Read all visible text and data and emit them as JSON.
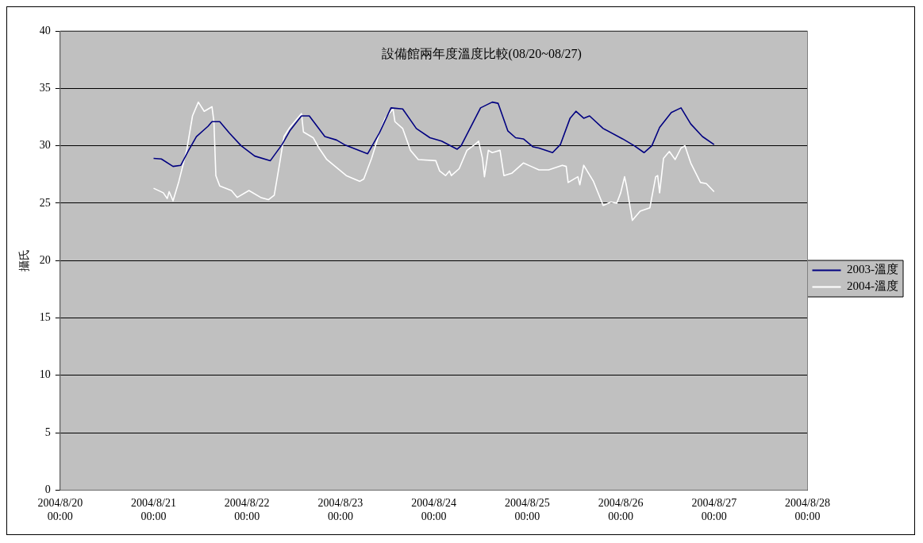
{
  "chart_data": {
    "type": "line",
    "title": "設備館兩年度溫度比較(08/20~08/27)",
    "ylabel": "攝氏",
    "xlim": [
      "2004-08-20T00:00",
      "2004-08-28T00:00"
    ],
    "xticks": [
      {
        "value": "2004-08-20T00:00",
        "label": "2004/8/20 00:00"
      },
      {
        "value": "2004-08-21T00:00",
        "label": "2004/8/21 00:00"
      },
      {
        "value": "2004-08-22T00:00",
        "label": "2004/8/22 00:00"
      },
      {
        "value": "2004-08-23T00:00",
        "label": "2004/8/23 00:00"
      },
      {
        "value": "2004-08-24T00:00",
        "label": "2004/8/24 00:00"
      },
      {
        "value": "2004-08-25T00:00",
        "label": "2004/8/25 00:00"
      },
      {
        "value": "2004-08-26T00:00",
        "label": "2004/8/26 00:00"
      },
      {
        "value": "2004-08-27T00:00",
        "label": "2004/8/27 00:00"
      },
      {
        "value": "2004-08-28T00:00",
        "label": "2004/8/28 00:00"
      }
    ],
    "ylim": [
      0,
      40
    ],
    "yticks": [
      0,
      5,
      10,
      15,
      20,
      25,
      30,
      35,
      40
    ],
    "grid": "y",
    "legend": "right",
    "marker": "none",
    "line_style": "solid",
    "series": [
      {
        "name": "2003-溫度",
        "color": "#000080",
        "x": [
          "2004-08-21T00:00",
          "2004-08-21T02:00",
          "2004-08-21T05:00",
          "2004-08-21T07:00",
          "2004-08-21T09:00",
          "2004-08-21T11:00",
          "2004-08-21T14:00",
          "2004-08-21T15:00",
          "2004-08-21T17:00",
          "2004-08-21T19:30",
          "2004-08-21T22:30",
          "2004-08-22T02:00",
          "2004-08-22T06:00",
          "2004-08-22T09:00",
          "2004-08-22T11:00",
          "2004-08-22T13:30",
          "2004-08-22T14:00",
          "2004-08-22T16:00",
          "2004-08-22T20:00",
          "2004-08-22T23:00",
          "2004-08-23T01:00",
          "2004-08-23T07:00",
          "2004-08-23T10:00",
          "2004-08-23T13:00",
          "2004-08-23T16:00",
          "2004-08-23T19:30",
          "2004-08-23T23:00",
          "2004-08-24T02:00",
          "2004-08-24T06:00",
          "2004-08-24T07:00",
          "2004-08-24T12:00",
          "2004-08-24T15:00",
          "2004-08-24T16:30",
          "2004-08-24T19:00",
          "2004-08-24T21:00",
          "2004-08-24T23:00",
          "2004-08-25T01:30",
          "2004-08-25T03:00",
          "2004-08-25T06:30",
          "2004-08-25T08:30",
          "2004-08-25T11:00",
          "2004-08-25T12:30",
          "2004-08-25T14:30",
          "2004-08-25T16:00",
          "2004-08-25T19:30",
          "2004-08-26T00:30",
          "2004-08-26T03:30",
          "2004-08-26T06:00",
          "2004-08-26T08:00",
          "2004-08-26T10:00",
          "2004-08-26T13:00",
          "2004-08-26T15:30",
          "2004-08-26T18:00",
          "2004-08-26T21:00",
          "2004-08-27T00:00"
        ],
        "values": [
          28.9,
          28.85,
          28.2,
          28.3,
          29.6,
          30.8,
          31.7,
          32.1,
          32.1,
          31.1,
          30.0,
          29.1,
          28.7,
          30.1,
          31.3,
          32.4,
          32.6,
          32.6,
          30.8,
          30.5,
          30.1,
          29.3,
          31.1,
          33.3,
          33.2,
          31.5,
          30.7,
          30.4,
          29.7,
          30.0,
          33.3,
          33.8,
          33.7,
          31.3,
          30.7,
          30.6,
          29.9,
          29.8,
          29.4,
          30.1,
          32.4,
          33.0,
          32.4,
          32.6,
          31.5,
          30.6,
          30.0,
          29.4,
          30.0,
          31.6,
          32.9,
          33.3,
          31.9,
          30.8,
          30.1
        ]
      },
      {
        "name": "2004-溫度",
        "color": "#ffffff",
        "x": [
          "2004-08-21T00:00",
          "2004-08-21T02:30",
          "2004-08-21T03:30",
          "2004-08-21T04:00",
          "2004-08-21T05:00",
          "2004-08-21T06:30",
          "2004-08-21T08:30",
          "2004-08-21T10:00",
          "2004-08-21T11:30",
          "2004-08-21T13:00",
          "2004-08-21T15:00",
          "2004-08-21T15:30",
          "2004-08-21T16:00",
          "2004-08-21T17:00",
          "2004-08-21T20:00",
          "2004-08-21T21:30",
          "2004-08-22T00:30",
          "2004-08-22T03:30",
          "2004-08-22T05:30",
          "2004-08-22T07:00",
          "2004-08-22T08:30",
          "2004-08-22T09:30",
          "2004-08-22T11:00",
          "2004-08-22T12:30",
          "2004-08-22T14:00",
          "2004-08-22T14:30",
          "2004-08-22T17:00",
          "2004-08-22T18:30",
          "2004-08-22T20:30",
          "2004-08-23T01:30",
          "2004-08-23T05:00",
          "2004-08-23T06:00",
          "2004-08-23T08:00",
          "2004-08-23T10:00",
          "2004-08-23T11:30",
          "2004-08-23T13:30",
          "2004-08-23T14:00",
          "2004-08-23T16:00",
          "2004-08-23T18:00",
          "2004-08-23T20:00",
          "2004-08-24T00:30",
          "2004-08-24T01:30",
          "2004-08-24T03:00",
          "2004-08-24T04:00",
          "2004-08-24T04:30",
          "2004-08-24T06:30",
          "2004-08-24T08:30",
          "2004-08-24T10:30",
          "2004-08-24T11:30",
          "2004-08-24T12:30",
          "2004-08-24T13:00",
          "2004-08-24T14:00",
          "2004-08-24T15:00",
          "2004-08-24T17:00",
          "2004-08-24T18:00",
          "2004-08-24T20:00",
          "2004-08-24T23:00",
          "2004-08-25T01:00",
          "2004-08-25T03:00",
          "2004-08-25T05:30",
          "2004-08-25T09:00",
          "2004-08-25T10:00",
          "2004-08-25T10:30",
          "2004-08-25T13:00",
          "2004-08-25T13:30",
          "2004-08-25T14:30",
          "2004-08-25T17:00",
          "2004-08-25T19:30",
          "2004-08-25T21:30",
          "2004-08-25T23:00",
          "2004-08-26T00:00",
          "2004-08-26T01:00",
          "2004-08-26T01:30",
          "2004-08-26T03:00",
          "2004-08-26T05:00",
          "2004-08-26T07:30",
          "2004-08-26T09:00",
          "2004-08-26T09:30",
          "2004-08-26T10:00",
          "2004-08-26T11:00",
          "2004-08-26T12:30",
          "2004-08-26T14:00",
          "2004-08-26T15:30",
          "2004-08-26T16:30",
          "2004-08-26T18:00",
          "2004-08-26T20:30",
          "2004-08-26T22:00",
          "2004-08-27T00:00"
        ],
        "values": [
          26.3,
          25.9,
          25.4,
          26.0,
          25.2,
          26.9,
          29.6,
          32.6,
          33.8,
          33.0,
          33.4,
          32.1,
          27.4,
          26.5,
          26.1,
          25.5,
          26.1,
          25.5,
          25.3,
          25.7,
          28.7,
          30.8,
          31.6,
          32.2,
          32.8,
          31.2,
          30.7,
          29.8,
          28.8,
          27.4,
          26.9,
          27.1,
          28.9,
          31.1,
          32.4,
          33.2,
          32.1,
          31.5,
          29.6,
          28.8,
          28.7,
          27.8,
          27.4,
          27.8,
          27.4,
          28.0,
          29.6,
          30.1,
          30.4,
          28.9,
          27.3,
          29.6,
          29.4,
          29.6,
          27.4,
          27.6,
          28.5,
          28.2,
          27.9,
          27.9,
          28.3,
          28.2,
          26.8,
          27.3,
          26.6,
          28.3,
          26.9,
          24.8,
          25.1,
          25.0,
          25.9,
          27.3,
          26.5,
          23.5,
          24.3,
          24.6,
          27.3,
          27.4,
          25.9,
          28.9,
          29.5,
          28.8,
          29.8,
          30.0,
          28.5,
          26.8,
          26.7,
          26.0
        ]
      }
    ]
  }
}
